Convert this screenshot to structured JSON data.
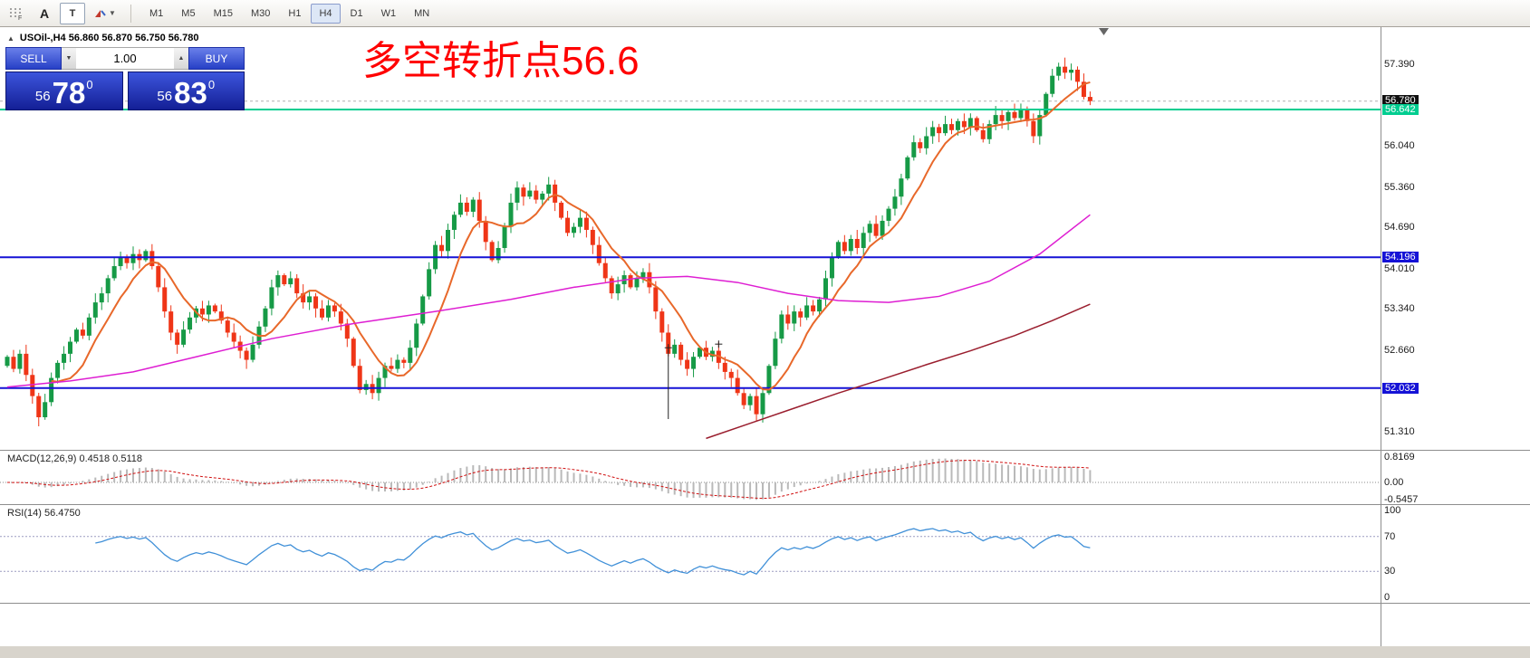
{
  "toolbar": {
    "grid_icon_label": "F",
    "text_tool_label": "A",
    "label_tool_label": "T",
    "timeframes": [
      "M1",
      "M5",
      "M15",
      "M30",
      "H1",
      "H4",
      "D1",
      "W1",
      "MN"
    ],
    "active_timeframe": "H4"
  },
  "icons": {
    "collapse_panel": "▲",
    "volume_spin_up": "▲",
    "volume_spin_down": "▼",
    "dropdown_caret": "▼"
  },
  "symbol_header": {
    "symbol": "USOil-,H4",
    "ohlc": [
      "56.860",
      "56.870",
      "56.750",
      "56.780"
    ],
    "label": "USOil-,H4   56.860 56.870 56.750 56.780"
  },
  "one_click": {
    "sell_label": "SELL",
    "buy_label": "BUY",
    "volume": "1.00",
    "bid": {
      "prefix": "56",
      "big": "78",
      "sup": "0"
    },
    "ask": {
      "prefix": "56",
      "big": "83",
      "sup": "0"
    }
  },
  "annotation": {
    "text": "多空转折点56.6",
    "color": "#ff0000"
  },
  "price_axis": {
    "ticks": [
      "57.390",
      "56.040",
      "55.360",
      "54.690",
      "54.010",
      "53.340",
      "52.660",
      "51.310"
    ],
    "current": {
      "label": "56.780",
      "bg": "#101010",
      "fg": "#ffffff"
    }
  },
  "panels": {
    "macd": {
      "label": "MACD(12,26,9) 0.4518 0.5118",
      "axis": [
        {
          "v": 0.8169,
          "t": "0.8169"
        },
        {
          "v": 0,
          "t": "0.00"
        },
        {
          "v": -0.5457,
          "t": "-0.5457"
        }
      ]
    },
    "rsi": {
      "label": "RSI(14) 56.4750",
      "axis": [
        {
          "v": 100,
          "t": "100"
        },
        {
          "v": 70,
          "t": "70"
        },
        {
          "v": 30,
          "t": "30"
        },
        {
          "v": 0,
          "t": "0"
        }
      ],
      "levels": [
        70,
        30
      ]
    }
  },
  "colors": {
    "bull": "#169a46",
    "bear": "#ef3517",
    "ma_fast": "#e8682a",
    "ma_mid": "#de1ed2",
    "ma_slow": "#9a1e2e",
    "macd_hist": "#b9b9b9",
    "macd_signal": "#d01010",
    "rsi_line": "#4090d8",
    "current_price_line": "#b0b0b0",
    "separator": "#8e8e8e"
  },
  "chart_data": {
    "type": "candlestick",
    "title": "USOil-,H4",
    "visible_price_range": [
      51.0,
      58.0
    ],
    "current_price": 56.78,
    "first_open": 52.4,
    "closes": [
      52.55,
      52.35,
      52.6,
      52.25,
      51.9,
      51.55,
      51.8,
      52.2,
      52.45,
      52.6,
      52.8,
      53.0,
      52.9,
      53.2,
      53.45,
      53.6,
      53.85,
      54.05,
      54.2,
      54.1,
      54.25,
      54.15,
      54.3,
      54.05,
      53.7,
      53.3,
      52.95,
      52.75,
      53.0,
      53.2,
      53.35,
      53.25,
      53.4,
      53.3,
      53.15,
      52.95,
      52.8,
      52.65,
      52.5,
      52.75,
      53.05,
      53.35,
      53.7,
      53.9,
      53.75,
      53.85,
      53.6,
      53.45,
      53.55,
      53.35,
      53.2,
      53.4,
      53.3,
      53.1,
      52.85,
      52.4,
      52.0,
      52.1,
      51.95,
      52.2,
      52.4,
      52.35,
      52.5,
      52.45,
      52.7,
      53.1,
      53.55,
      54.0,
      54.4,
      54.3,
      54.65,
      54.9,
      55.1,
      54.95,
      55.15,
      54.8,
      54.45,
      54.15,
      54.35,
      54.7,
      55.1,
      55.35,
      55.2,
      55.3,
      55.15,
      55.25,
      55.4,
      55.1,
      54.85,
      54.6,
      54.7,
      54.85,
      54.65,
      54.4,
      54.1,
      53.85,
      53.6,
      53.75,
      53.9,
      53.7,
      53.85,
      53.95,
      53.7,
      53.3,
      52.95,
      52.6,
      52.75,
      52.5,
      52.35,
      52.55,
      52.7,
      52.55,
      52.65,
      52.45,
      52.3,
      52.2,
      51.95,
      51.75,
      51.9,
      51.6,
      51.95,
      52.4,
      52.85,
      53.25,
      53.1,
      53.3,
      53.2,
      53.4,
      53.3,
      53.5,
      53.85,
      54.2,
      54.45,
      54.3,
      54.5,
      54.35,
      54.6,
      54.75,
      54.55,
      54.8,
      55.0,
      55.2,
      55.5,
      55.85,
      56.1,
      56.0,
      56.2,
      56.35,
      56.25,
      56.4,
      56.3,
      56.45,
      56.35,
      56.5,
      56.3,
      56.15,
      56.4,
      56.55,
      56.45,
      56.6,
      56.5,
      56.65,
      56.45,
      56.2,
      56.55,
      56.9,
      57.2,
      57.35,
      57.25,
      57.3,
      57.1,
      56.85,
      56.78
    ],
    "hlines": [
      {
        "price": 56.642,
        "color": "#00cd90",
        "label": "56.642"
      },
      {
        "price": 54.196,
        "color": "#1512d6",
        "label": "54.196"
      },
      {
        "price": 52.032,
        "color": "#1512d6",
        "label": "52.032"
      }
    ],
    "moving_averages": {
      "fast": {
        "period": 8,
        "color": "#e8682a"
      },
      "mid": {
        "color": "#de1ed2",
        "points": [
          [
            0,
            52.05
          ],
          [
            10,
            52.15
          ],
          [
            20,
            52.3
          ],
          [
            30,
            52.55
          ],
          [
            42,
            52.85
          ],
          [
            55,
            53.1
          ],
          [
            68,
            53.3
          ],
          [
            80,
            53.5
          ],
          [
            90,
            53.7
          ],
          [
            100,
            53.85
          ],
          [
            108,
            53.88
          ],
          [
            116,
            53.78
          ],
          [
            124,
            53.6
          ],
          [
            132,
            53.48
          ],
          [
            140,
            53.45
          ],
          [
            148,
            53.55
          ],
          [
            156,
            53.8
          ],
          [
            164,
            54.25
          ],
          [
            172,
            54.9
          ]
        ]
      },
      "slow": {
        "color": "#9a1e2e",
        "points": [
          [
            111,
            51.2
          ],
          [
            118,
            51.45
          ],
          [
            125,
            51.7
          ],
          [
            132,
            51.95
          ],
          [
            139,
            52.18
          ],
          [
            146,
            52.42
          ],
          [
            153,
            52.65
          ],
          [
            160,
            52.9
          ],
          [
            166,
            53.15
          ],
          [
            172,
            53.42
          ]
        ]
      }
    },
    "indicators": {
      "macd": {
        "params": [
          12,
          26,
          9
        ],
        "display_values": [
          "0.4518",
          "0.5118"
        ],
        "axis_range": [
          -0.5457,
          0.8169
        ]
      },
      "rsi": {
        "period": 14,
        "display_value": "56.4750",
        "levels": [
          70,
          30
        ]
      }
    },
    "objects": {
      "vertical_segment": {
        "index": 105,
        "from_price": 52.65,
        "to_price": 51.52
      },
      "cross_marks": [
        {
          "index": 105,
          "price": 52.7
        },
        {
          "index": 113,
          "price": 52.76
        }
      ]
    }
  }
}
